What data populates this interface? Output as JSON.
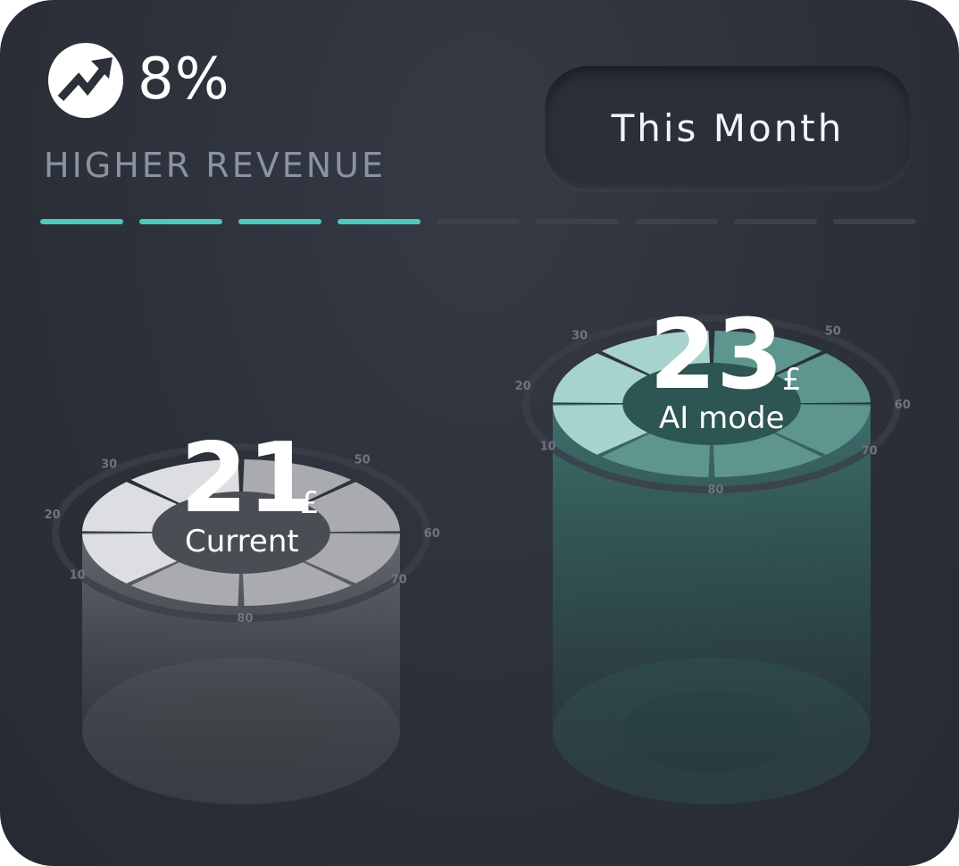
{
  "header": {
    "percent": "8%",
    "subtitle": "HIGHER REVENUE",
    "period_label": "This Month"
  },
  "progress": {
    "filled": 4,
    "total": 9,
    "accent": "#4fc9bd",
    "track": "#3c414b"
  },
  "chart_data": {
    "type": "bar",
    "categories": [
      "Current",
      "AI mode"
    ],
    "values": [
      21,
      23
    ],
    "unit": "£",
    "dial_ticks": [
      "10",
      "20",
      "30",
      "50",
      "60",
      "70",
      "80"
    ],
    "colors": [
      "#d6d8dc",
      "#8fc7c1"
    ]
  },
  "icons": {
    "trend": "trending-up-icon"
  }
}
